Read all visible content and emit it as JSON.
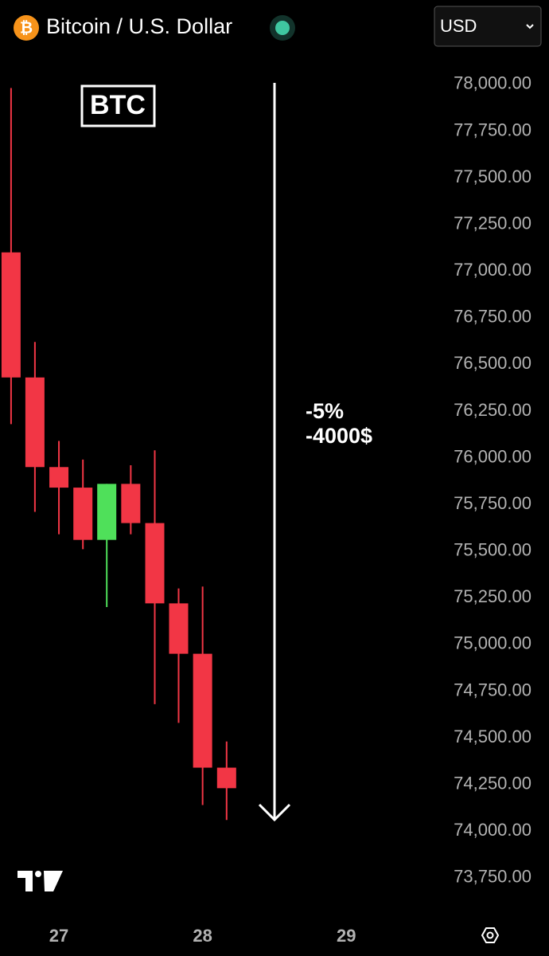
{
  "chart_data": {
    "type": "candlestick",
    "title": "Bitcoin / U.S. Dollar",
    "currency": "USD",
    "badge": "BTC",
    "annotations": [
      "-5%",
      "-4000$"
    ],
    "x": [
      26.667,
      26.833,
      27,
      27.167,
      27.333,
      27.5,
      27.667,
      27.833,
      28,
      28.167
    ],
    "series": [
      {
        "open": [
          77100,
          76430,
          75950,
          75840,
          75560,
          75860,
          75650,
          75220,
          74950,
          74340
        ],
        "high": [
          77980,
          76620,
          76090,
          75990,
          75860,
          75960,
          76040,
          75300,
          75310,
          74480
        ],
        "low": [
          76180,
          75710,
          75590,
          75510,
          75200,
          75590,
          74680,
          74580,
          74140,
          74060
        ],
        "close": [
          76430,
          75950,
          75840,
          75560,
          75860,
          75650,
          75220,
          74950,
          74340,
          74230
        ]
      }
    ],
    "up_color": "#4fe05a",
    "down_color": "#f23645",
    "xlim": [
      26.59,
      29.58
    ],
    "xticks": [
      27,
      28,
      29
    ],
    "ylim": [
      73600,
      78200
    ],
    "yticks": [
      {
        "value": 78000,
        "label": "78,000.00"
      },
      {
        "value": 77750,
        "label": "77,750.00"
      },
      {
        "value": 77500,
        "label": "77,500.00"
      },
      {
        "value": 77250,
        "label": "77,250.00"
      },
      {
        "value": 77000,
        "label": "77,000.00"
      },
      {
        "value": 76750,
        "label": "76,750.00"
      },
      {
        "value": 76500,
        "label": "76,500.00"
      },
      {
        "value": 76250,
        "label": "76,250.00"
      },
      {
        "value": 76000,
        "label": "76,000.00"
      },
      {
        "value": 75750,
        "label": "75,750.00"
      },
      {
        "value": 75500,
        "label": "75,500.00"
      },
      {
        "value": 75250,
        "label": "75,250.00"
      },
      {
        "value": 75000,
        "label": "75,000.00"
      },
      {
        "value": 74750,
        "label": "74,750.00"
      },
      {
        "value": 74500,
        "label": "74,500.00"
      },
      {
        "value": 74250,
        "label": "74,250.00"
      },
      {
        "value": 74000,
        "label": "74,000.00"
      },
      {
        "value": 73750,
        "label": "73,750.00"
      }
    ]
  }
}
